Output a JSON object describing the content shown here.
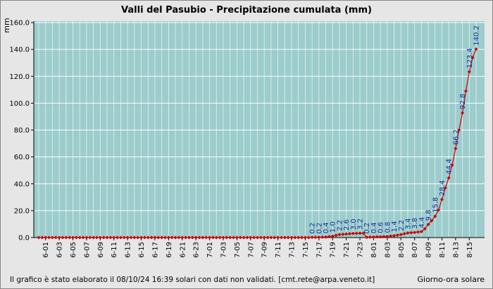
{
  "chart_data": {
    "type": "line",
    "title": "Valli del Pasubio - Precipitazione cumulata (mm)",
    "y_label": "mm",
    "x_label": "Giorno-ora solare",
    "footnote": "Il grafico è stato elaborato il 08/10/24 16:39 solari con dati non validati. [cmt.rete@arpa.veneto.it]",
    "categories": [
      null,
      null,
      "6-01",
      null,
      null,
      null,
      "6-03",
      null,
      null,
      null,
      "6-05",
      null,
      null,
      null,
      "6-07",
      null,
      null,
      null,
      "6-09",
      null,
      null,
      null,
      "6-11",
      null,
      null,
      null,
      "6-13",
      null,
      null,
      null,
      "6-15",
      null,
      null,
      null,
      "6-17",
      null,
      null,
      null,
      "6-19",
      null,
      null,
      null,
      "6-21",
      null,
      null,
      null,
      "6-23",
      null,
      null,
      null,
      "7-01",
      null,
      null,
      null,
      "7-03",
      null,
      null,
      null,
      "7-05",
      null,
      null,
      null,
      "7-07",
      null,
      null,
      null,
      "7-09",
      null,
      null,
      null,
      "7-11",
      null,
      null,
      null,
      "7-13",
      null,
      null,
      null,
      "7-15",
      null,
      null,
      null,
      "7-17",
      null,
      null,
      null,
      "7-19",
      null,
      null,
      null,
      "7-21",
      null,
      null,
      null,
      "7-23",
      null,
      null,
      null,
      "8-01",
      null,
      null,
      null,
      "8-03",
      null,
      null,
      null,
      "8-05",
      null,
      null,
      null,
      "8-07",
      null,
      null,
      null,
      "8-09",
      null,
      null,
      null,
      "8-11",
      null,
      null,
      null,
      "8-13",
      null,
      null,
      null,
      "8-15",
      null,
      null
    ],
    "series": [
      {
        "color": "#cc0000",
        "values": [
          0,
          0,
          0,
          0,
          0,
          0,
          0,
          0,
          0,
          0,
          0,
          0,
          0,
          0,
          0,
          0,
          0,
          0,
          0,
          0,
          0,
          0,
          0,
          0,
          0,
          0,
          0,
          0,
          0,
          0,
          0,
          0,
          0,
          0,
          0,
          0,
          0,
          0,
          0,
          0,
          0,
          0,
          0,
          0,
          0,
          0,
          0,
          0,
          0,
          0,
          0,
          0,
          0,
          0,
          0,
          0,
          0,
          0,
          0,
          0,
          0,
          0,
          0,
          0,
          0,
          0,
          0,
          0,
          0,
          0,
          0,
          0,
          0,
          0,
          0,
          0,
          0,
          0,
          0,
          0,
          0.2,
          0.2,
          0.2,
          0.3,
          0.4,
          0.7,
          1.0,
          1.6,
          2.2,
          2.4,
          2.6,
          2.8,
          3.0,
          3.1,
          3.2,
          3.2,
          0.2,
          0.3,
          0.4,
          0.5,
          0.6,
          0.7,
          0.8,
          1.1,
          1.4,
          1.8,
          2.2,
          2.8,
          3.4,
          3.6,
          3.8,
          4.1,
          4.4,
          6.5,
          9.8,
          12.5,
          15.8,
          20.5,
          28.4,
          37.0,
          44.4,
          54.0,
          66.2,
          80.0,
          92.8,
          109.0,
          123.4,
          134.0,
          140.2
        ],
        "value_labels": [
          null,
          null,
          null,
          null,
          null,
          null,
          null,
          null,
          null,
          null,
          null,
          null,
          null,
          null,
          null,
          null,
          null,
          null,
          null,
          null,
          null,
          null,
          null,
          null,
          null,
          null,
          null,
          null,
          null,
          null,
          null,
          null,
          null,
          null,
          null,
          null,
          null,
          null,
          null,
          null,
          null,
          null,
          null,
          null,
          null,
          null,
          null,
          null,
          null,
          null,
          null,
          null,
          null,
          null,
          null,
          null,
          null,
          null,
          null,
          null,
          null,
          null,
          null,
          null,
          null,
          null,
          null,
          null,
          null,
          null,
          null,
          null,
          null,
          null,
          null,
          null,
          null,
          null,
          null,
          null,
          "0.2",
          null,
          "0.2",
          null,
          "0.4",
          null,
          "1.0",
          null,
          "2.2",
          null,
          "2.6",
          null,
          "3.0",
          null,
          "3.2",
          null,
          "0.2",
          null,
          "0.4",
          null,
          "0.6",
          null,
          "0.8",
          null,
          "1.4",
          null,
          "2.2",
          null,
          "3.4",
          null,
          "3.8",
          null,
          "4.4",
          null,
          "9.8",
          null,
          "15.8",
          null,
          "28.4",
          null,
          "44.4",
          null,
          "66.2",
          null,
          "92.8",
          null,
          "123.4",
          null,
          "140.2"
        ]
      }
    ],
    "ylim": [
      0,
      160
    ],
    "yticks": [
      {
        "value": 0,
        "label": "0.0"
      },
      {
        "value": 20,
        "label": "20.0"
      },
      {
        "value": 40,
        "label": "40.0"
      },
      {
        "value": 60,
        "label": "60.0"
      },
      {
        "value": 80,
        "label": "80.0"
      },
      {
        "value": 100,
        "label": "100.0"
      },
      {
        "value": 120,
        "label": "120.0"
      },
      {
        "value": 140,
        "label": "140.0"
      },
      {
        "value": 160,
        "label": "160.0"
      }
    ],
    "grid": true,
    "value_label_color": "#1a2a99"
  }
}
